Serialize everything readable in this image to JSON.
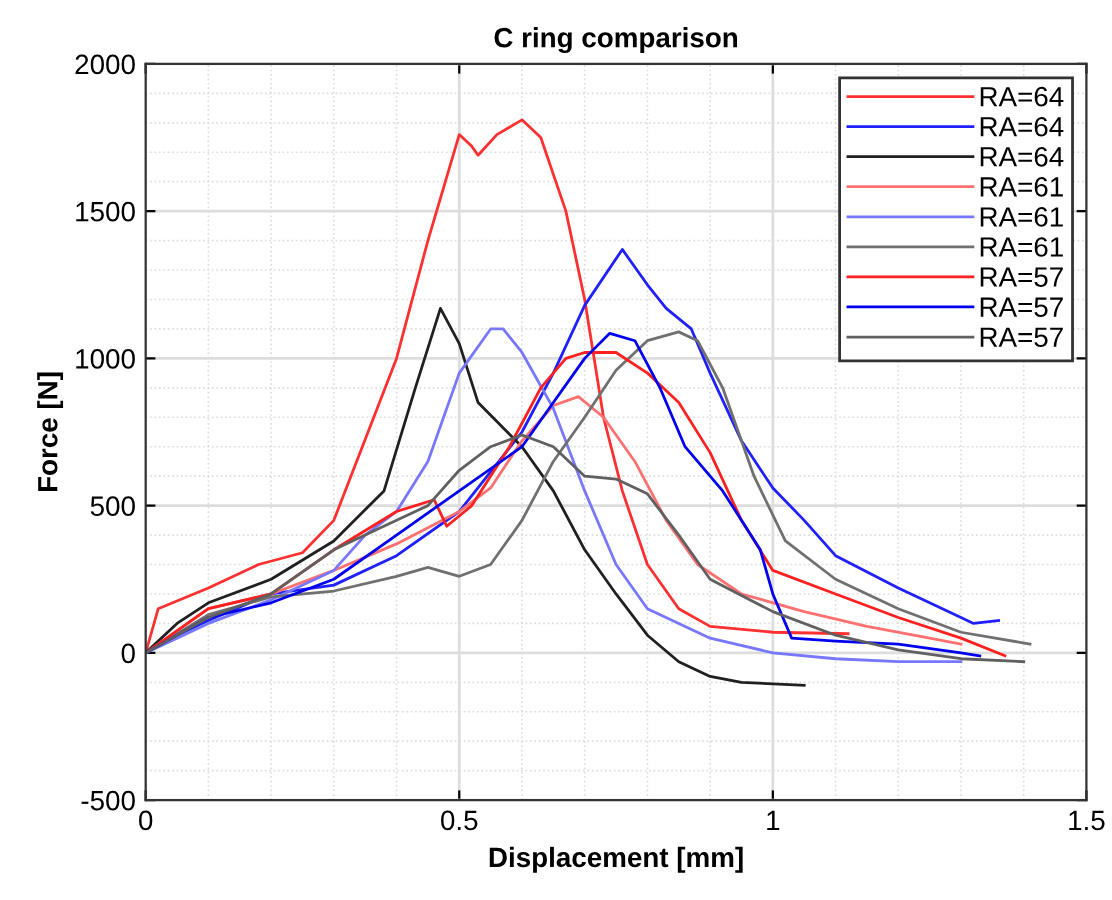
{
  "chart_data": {
    "type": "line",
    "title": "C ring comparison",
    "xlabel": "Displacement [mm]",
    "ylabel": "Force [N]",
    "xlim": [
      0,
      1.5
    ],
    "xticks": [
      0,
      0.5,
      1,
      1.5
    ],
    "ylim": [
      -500,
      2000
    ],
    "yticks": [
      -500,
      0,
      500,
      1000,
      1500,
      2000
    ],
    "grid": true,
    "legend": "top right",
    "marker": "none",
    "line_style": "solid",
    "series": [
      {
        "name": "RA=64",
        "color": "#ff3030",
        "x": [
          0,
          0.02,
          0.1,
          0.18,
          0.25,
          0.3,
          0.4,
          0.45,
          0.5,
          0.52,
          0.53,
          0.56,
          0.6,
          0.63,
          0.67,
          0.7,
          0.73,
          0.76,
          0.8,
          0.85,
          0.9,
          1.0,
          1.12
        ],
        "values": [
          0,
          150,
          220,
          300,
          340,
          450,
          1000,
          1400,
          1760,
          1720,
          1690,
          1760,
          1810,
          1750,
          1500,
          1200,
          800,
          550,
          300,
          150,
          90,
          70,
          65
        ]
      },
      {
        "name": "RA=64",
        "color": "#2020ff",
        "x": [
          0,
          0.05,
          0.1,
          0.2,
          0.3,
          0.4,
          0.5,
          0.6,
          0.65,
          0.7,
          0.76,
          0.8,
          0.83,
          0.87,
          0.9,
          0.95,
          1.0,
          1.05,
          1.1,
          1.2,
          1.3,
          1.32,
          1.36
        ],
        "values": [
          0,
          60,
          110,
          200,
          230,
          330,
          480,
          750,
          950,
          1180,
          1370,
          1250,
          1170,
          1100,
          950,
          720,
          560,
          450,
          330,
          220,
          120,
          100,
          110
        ]
      },
      {
        "name": "RA=64",
        "color": "#202020",
        "x": [
          0,
          0.05,
          0.1,
          0.2,
          0.3,
          0.38,
          0.43,
          0.47,
          0.5,
          0.53,
          0.6,
          0.65,
          0.7,
          0.75,
          0.8,
          0.85,
          0.9,
          0.95,
          1.05
        ],
        "values": [
          0,
          100,
          170,
          250,
          380,
          550,
          900,
          1170,
          1050,
          850,
          700,
          550,
          350,
          200,
          60,
          -30,
          -80,
          -100,
          -110
        ]
      },
      {
        "name": "RA=61",
        "color": "#ff7070",
        "x": [
          0,
          0.1,
          0.2,
          0.3,
          0.4,
          0.5,
          0.55,
          0.6,
          0.65,
          0.69,
          0.73,
          0.78,
          0.83,
          0.88,
          0.95,
          1.05,
          1.15,
          1.25,
          1.3
        ],
        "values": [
          0,
          150,
          200,
          280,
          370,
          480,
          560,
          720,
          840,
          870,
          800,
          650,
          450,
          300,
          200,
          140,
          90,
          50,
          30
        ]
      },
      {
        "name": "RA=61",
        "color": "#7777ff",
        "x": [
          0,
          0.05,
          0.1,
          0.2,
          0.3,
          0.35,
          0.4,
          0.45,
          0.5,
          0.55,
          0.57,
          0.6,
          0.65,
          0.7,
          0.75,
          0.8,
          0.9,
          1.0,
          1.1,
          1.2,
          1.3
        ],
        "values": [
          0,
          50,
          100,
          180,
          280,
          400,
          480,
          650,
          950,
          1100,
          1100,
          1020,
          830,
          550,
          300,
          150,
          50,
          0,
          -20,
          -30,
          -30
        ]
      },
      {
        "name": "RA=61",
        "color": "#707070",
        "x": [
          0,
          0.1,
          0.2,
          0.3,
          0.4,
          0.45,
          0.5,
          0.55,
          0.6,
          0.65,
          0.7,
          0.75,
          0.8,
          0.85,
          0.88,
          0.92,
          0.97,
          1.02,
          1.1,
          1.2,
          1.3,
          1.41
        ],
        "values": [
          0,
          130,
          190,
          210,
          260,
          290,
          260,
          300,
          450,
          650,
          800,
          960,
          1060,
          1090,
          1060,
          900,
          600,
          380,
          250,
          150,
          70,
          30
        ]
      },
      {
        "name": "RA=57",
        "color": "#ff2020",
        "x": [
          0,
          0.1,
          0.2,
          0.3,
          0.4,
          0.46,
          0.48,
          0.52,
          0.58,
          0.63,
          0.67,
          0.7,
          0.75,
          0.8,
          0.85,
          0.9,
          0.95,
          1.0,
          1.1,
          1.2,
          1.3,
          1.37
        ],
        "values": [
          0,
          150,
          200,
          350,
          480,
          520,
          430,
          500,
          700,
          900,
          1000,
          1020,
          1020,
          950,
          850,
          680,
          450,
          280,
          200,
          120,
          50,
          -10
        ]
      },
      {
        "name": "RA=57",
        "color": "#0000ee",
        "x": [
          0,
          0.1,
          0.2,
          0.3,
          0.4,
          0.5,
          0.6,
          0.65,
          0.7,
          0.74,
          0.78,
          0.82,
          0.86,
          0.92,
          0.98,
          1.0,
          1.03,
          1.1,
          1.2,
          1.3,
          1.33
        ],
        "values": [
          0,
          120,
          170,
          250,
          400,
          550,
          700,
          850,
          1000,
          1085,
          1060,
          900,
          700,
          550,
          350,
          200,
          50,
          40,
          30,
          0,
          -10
        ]
      },
      {
        "name": "RA=57",
        "color": "#606060",
        "x": [
          0,
          0.1,
          0.2,
          0.3,
          0.4,
          0.45,
          0.5,
          0.55,
          0.6,
          0.65,
          0.7,
          0.75,
          0.8,
          0.85,
          0.9,
          1.0,
          1.1,
          1.2,
          1.3,
          1.4
        ],
        "values": [
          0,
          120,
          200,
          350,
          450,
          500,
          620,
          700,
          740,
          700,
          600,
          590,
          540,
          400,
          250,
          140,
          60,
          10,
          -20,
          -30
        ]
      }
    ]
  }
}
